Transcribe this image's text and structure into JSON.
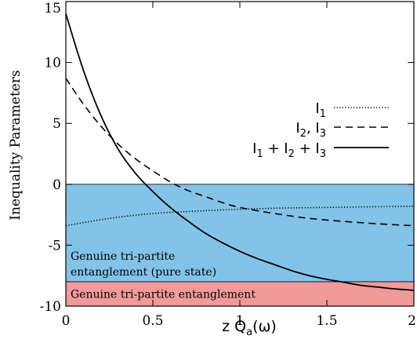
{
  "chart_data": {
    "type": "line",
    "xlabel": "z Q",
    "xlabel_sub": "a",
    "xlabel_suffix": "(ω)",
    "ylabel": "Inequality Parameters",
    "xlim": [
      0,
      2
    ],
    "ylim": [
      -10,
      15
    ],
    "x_ticks": [
      0,
      0.5,
      1,
      1.5,
      2
    ],
    "x_tick_labels": [
      "0",
      "0.5",
      "1",
      "1.5",
      "2"
    ],
    "y_ticks": [
      -10,
      -5,
      0,
      5,
      10,
      15
    ],
    "y_tick_labels": [
      "-10",
      "-5",
      "0",
      "5",
      "10",
      "15"
    ],
    "grid": false,
    "legend_position": "right",
    "regions": [
      {
        "label_lines": [
          "Genuine tri-partite",
          "entanglement (pure state)"
        ],
        "y_from": -8,
        "y_to": 0,
        "color": "#84c3e8"
      },
      {
        "label_lines": [
          "Genuine tri-partite entanglement"
        ],
        "y_from": -10,
        "y_to": -8,
        "color": "#f29a9a"
      }
    ],
    "series": [
      {
        "name": "I1",
        "legend_parts": [
          [
            "I",
            ""
          ],
          [
            "1",
            "sub"
          ]
        ],
        "style": "dotted",
        "x": [
          0,
          0.25,
          0.5,
          0.75,
          1,
          1.25,
          1.5,
          1.75,
          2
        ],
        "y": [
          -3.4,
          -2.8,
          -2.4,
          -2.2,
          -2.05,
          -1.95,
          -1.9,
          -1.85,
          -1.8
        ]
      },
      {
        "name": "I2, I3",
        "legend_parts": [
          [
            "I",
            ""
          ],
          [
            "2",
            "sub"
          ],
          [
            ", I",
            ""
          ],
          [
            "3",
            "sub"
          ]
        ],
        "style": "dashed",
        "x": [
          0,
          0.1,
          0.2,
          0.3,
          0.4,
          0.5,
          0.6,
          0.7,
          0.8,
          0.9,
          1,
          1.2,
          1.4,
          1.6,
          1.8,
          2
        ],
        "y": [
          8.7,
          6.6,
          4.8,
          3.3,
          2.1,
          1.1,
          0.2,
          -0.5,
          -1.0,
          -1.5,
          -1.9,
          -2.4,
          -2.8,
          -3.05,
          -3.25,
          -3.4
        ]
      },
      {
        "name": "I1 + I2 + I3",
        "legend_parts": [
          [
            "I",
            ""
          ],
          [
            "1",
            "sub"
          ],
          [
            " + I",
            ""
          ],
          [
            "2",
            "sub"
          ],
          [
            " + I",
            ""
          ],
          [
            "3",
            "sub"
          ]
        ],
        "style": "solid",
        "x": [
          0,
          0.1,
          0.2,
          0.3,
          0.4,
          0.5,
          0.6,
          0.7,
          0.8,
          0.9,
          1,
          1.1,
          1.2,
          1.3,
          1.4,
          1.5,
          1.6,
          1.7,
          1.8,
          1.9,
          2
        ],
        "y": [
          14.0,
          9.4,
          5.7,
          2.9,
          0.9,
          -0.6,
          -1.9,
          -3.0,
          -4.0,
          -4.8,
          -5.5,
          -6.1,
          -6.6,
          -7.1,
          -7.5,
          -7.8,
          -8.05,
          -8.3,
          -8.45,
          -8.6,
          -8.7
        ]
      }
    ]
  }
}
